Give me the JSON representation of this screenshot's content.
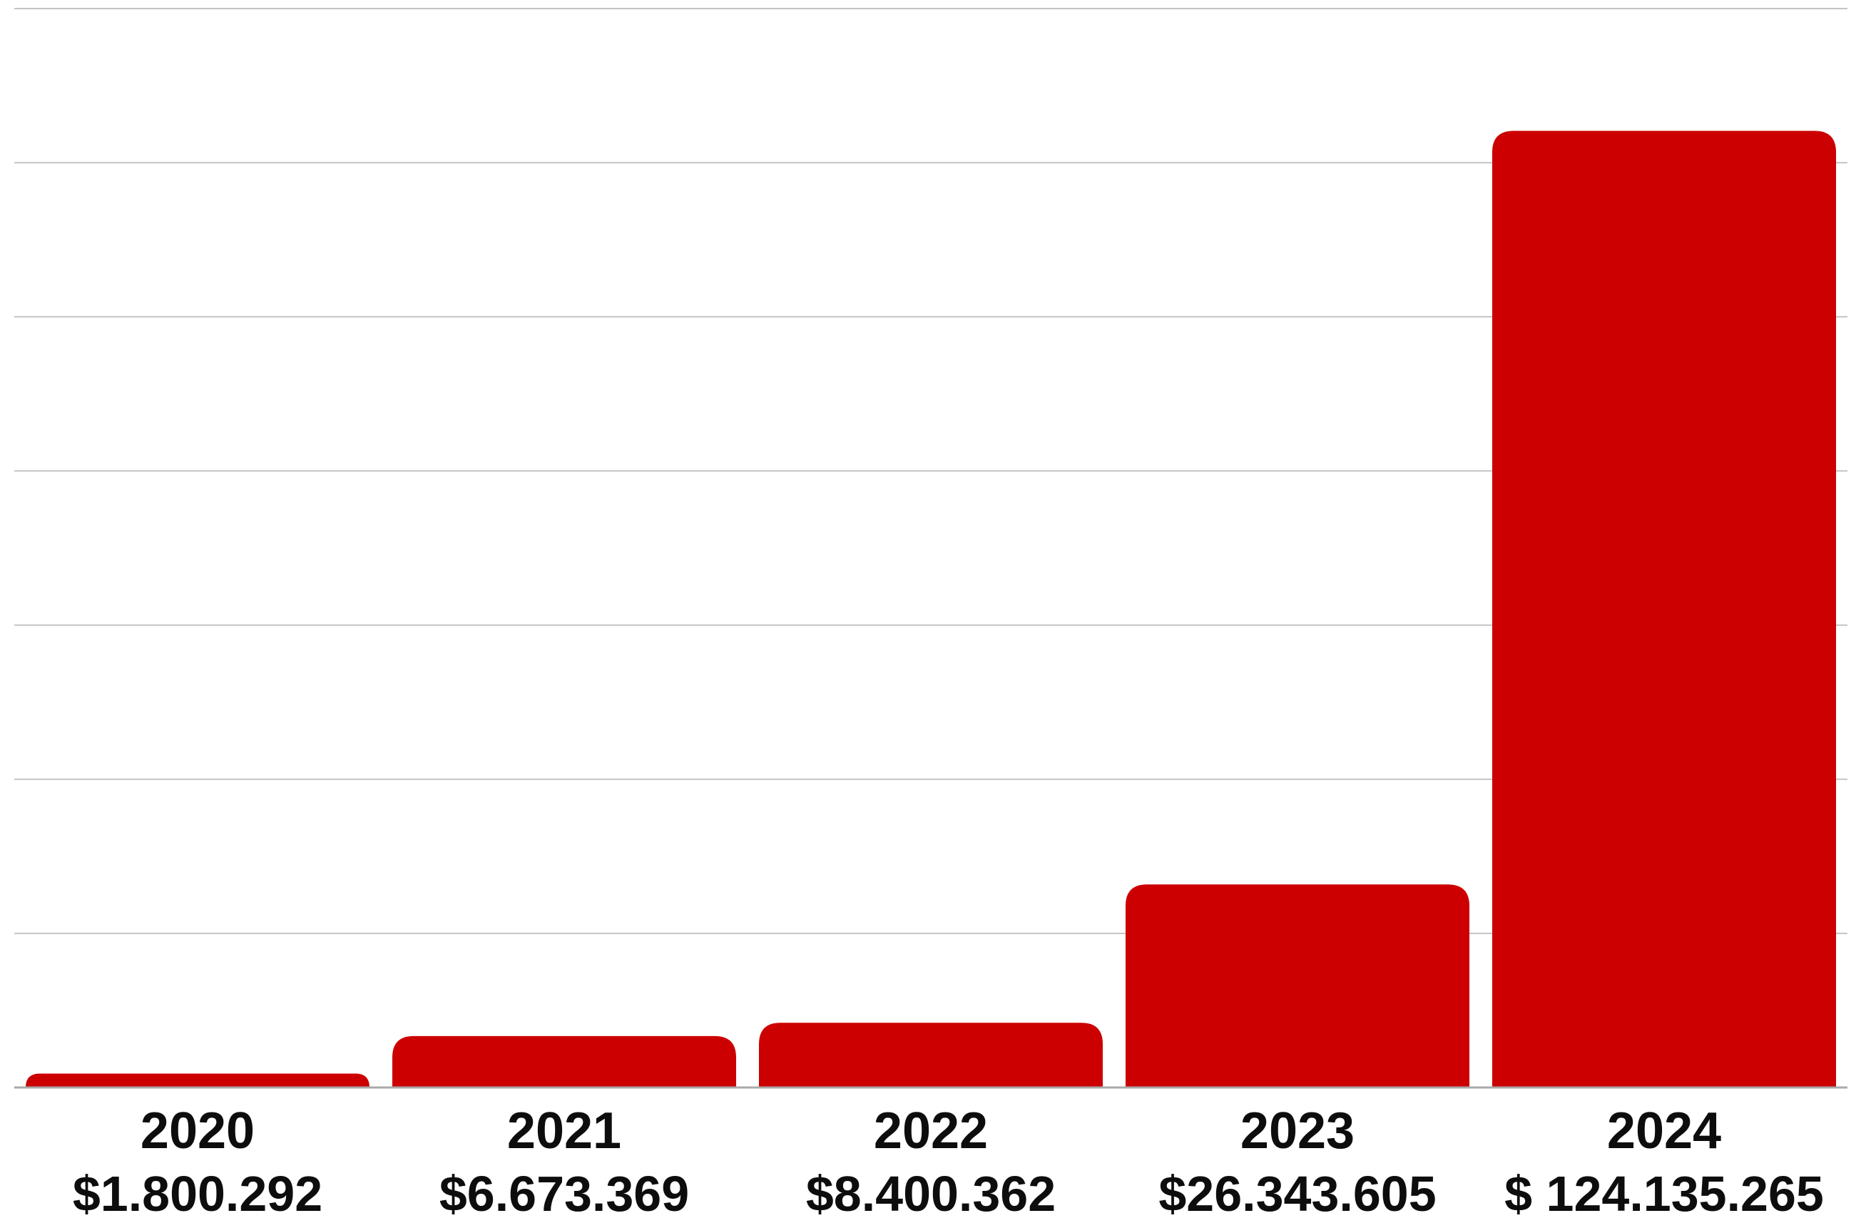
{
  "chart_data": {
    "type": "bar",
    "categories": [
      "2020",
      "2021",
      "2022",
      "2023",
      "2024"
    ],
    "values": [
      1800292,
      6673369,
      8400362,
      26343605,
      124135265
    ],
    "value_labels": [
      "$1.800.292",
      "$6.673.369",
      "$8.400.362",
      "$26.343.605",
      "$ 124.135.265"
    ],
    "title": "",
    "xlabel": "",
    "ylabel": "",
    "ylim": [
      0,
      140000000
    ],
    "grid": true,
    "legend": "none",
    "bar_color": "#cc0000"
  }
}
